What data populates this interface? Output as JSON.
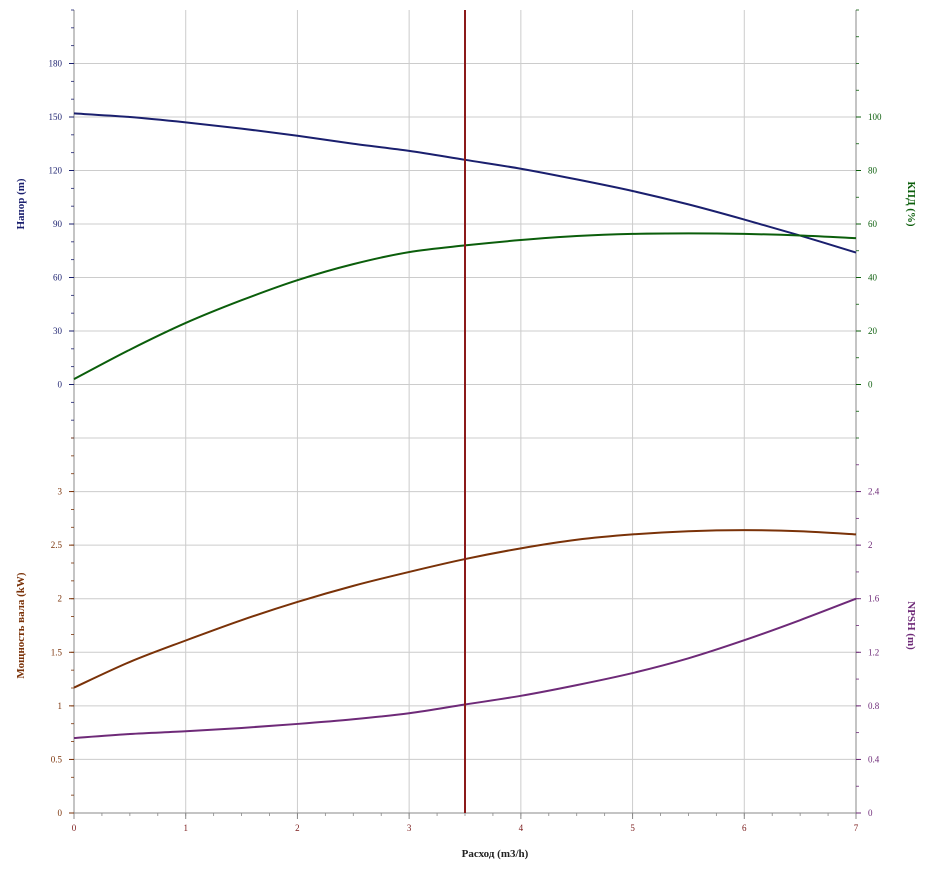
{
  "chart_data": [
    {
      "type": "line",
      "panel": "upper",
      "x": [
        0,
        0.5,
        1,
        1.5,
        2,
        2.5,
        3,
        3.5,
        4,
        4.5,
        5,
        5.5,
        6,
        6.5,
        7
      ],
      "x_ticks": [
        "0",
        "1",
        "2",
        "3",
        "4",
        "5",
        "6",
        "7"
      ],
      "xlim": [
        0,
        7
      ],
      "ylabel_left": "Напор (m)",
      "ylabel_right": "КПД (%)",
      "ylim_left": [
        -30,
        210
      ],
      "ylim_right": [
        -20,
        140
      ],
      "yticks_left": [
        "0",
        "30",
        "60",
        "90",
        "120",
        "150",
        "180"
      ],
      "yticks_right": [
        "0",
        "20",
        "40",
        "60",
        "80",
        "100"
      ],
      "grid": true,
      "series": [
        {
          "axis": "left",
          "color": "#1a1f6e",
          "values": [
            152,
            150,
            147,
            143.5,
            139.5,
            135,
            131,
            126,
            121,
            115,
            108.5,
            101,
            92.5,
            83.5,
            74
          ]
        },
        {
          "axis": "right",
          "color": "#0b5e0b",
          "values": [
            2,
            13,
            23,
            31.5,
            39,
            45,
            49.5,
            52,
            54,
            55.5,
            56.3,
            56.5,
            56.3,
            55.7,
            54.7
          ]
        }
      ]
    },
    {
      "type": "line",
      "panel": "lower",
      "x": [
        0,
        0.5,
        1,
        1.5,
        2,
        2.5,
        3,
        3.5,
        4,
        4.5,
        5,
        5.5,
        6,
        6.5,
        7
      ],
      "x_ticks": [
        "0",
        "1",
        "2",
        "3",
        "4",
        "5",
        "6",
        "7"
      ],
      "xlim": [
        0,
        7
      ],
      "xlabel": "Расход (m3/h)",
      "ylabel_left": "Мощность вала (kW)",
      "ylabel_right": "NPSH (m)",
      "ylim_left": [
        0,
        3.5
      ],
      "ylim_right": [
        0,
        2.8
      ],
      "yticks_left": [
        "0",
        "0.5",
        "1",
        "1.5",
        "2",
        "2.5",
        "3"
      ],
      "yticks_right": [
        "0",
        "0.4",
        "0.8",
        "1.2",
        "1.6",
        "2",
        "2.4"
      ],
      "grid": true,
      "series": [
        {
          "axis": "left",
          "color": "#7a3208",
          "values": [
            1.17,
            1.41,
            1.61,
            1.8,
            1.97,
            2.12,
            2.25,
            2.37,
            2.47,
            2.55,
            2.6,
            2.63,
            2.64,
            2.63,
            2.6
          ]
        },
        {
          "axis": "right",
          "color": "#6e2a78",
          "values": [
            0.56,
            0.59,
            0.61,
            0.635,
            0.665,
            0.7,
            0.745,
            0.81,
            0.875,
            0.955,
            1.045,
            1.155,
            1.29,
            1.44,
            1.6
          ]
        }
      ]
    }
  ],
  "operating_point": {
    "x": 3.5,
    "color": "#8b1a1a"
  },
  "colors": {
    "grid": "#cccccc",
    "frame": "#888888",
    "xaxis_text": "#7a1a1a"
  }
}
